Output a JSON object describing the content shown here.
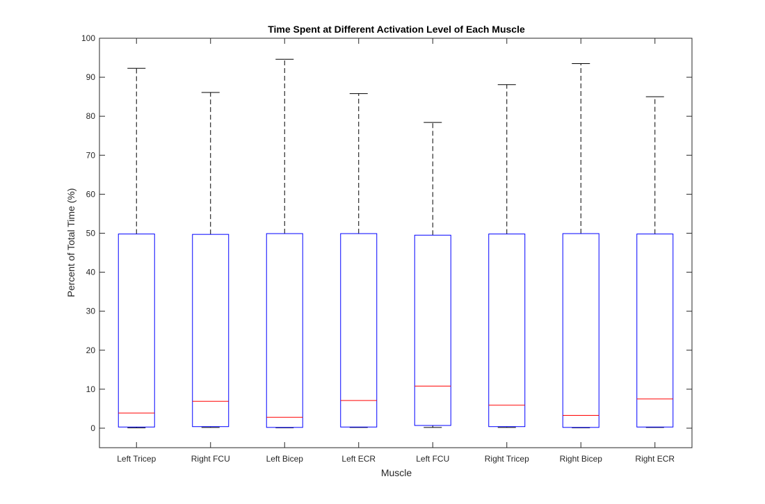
{
  "chart_data": {
    "type": "box",
    "title": "Time Spent at Different Activation Level of Each Muscle",
    "xlabel": "Muscle",
    "ylabel": "Percent of Total Time (%)",
    "ylim": [
      -5,
      100
    ],
    "yticks": [
      0,
      10,
      20,
      30,
      40,
      50,
      60,
      70,
      80,
      90,
      100
    ],
    "grid": false,
    "legend": "none",
    "categories": [
      "Left Tricep",
      "Right FCU",
      "Left Bicep",
      "Left ECR",
      "Left FCU",
      "Right Tricep",
      "Right Bicep",
      "Right ECR"
    ],
    "boxes": [
      {
        "label": "Left Tricep",
        "min": 0.1,
        "q1": 0.3,
        "median": 3.9,
        "q3": 49.8,
        "max": 92.3
      },
      {
        "label": "Right FCU",
        "min": 0.2,
        "q1": 0.4,
        "median": 6.9,
        "q3": 49.7,
        "max": 86.1
      },
      {
        "label": "Left Bicep",
        "min": 0.1,
        "q1": 0.2,
        "median": 2.8,
        "q3": 49.9,
        "max": 94.6
      },
      {
        "label": "Left ECR",
        "min": 0.2,
        "q1": 0.3,
        "median": 7.1,
        "q3": 49.9,
        "max": 85.8
      },
      {
        "label": "Left FCU",
        "min": 0.2,
        "q1": 0.7,
        "median": 10.8,
        "q3": 49.5,
        "max": 78.4
      },
      {
        "label": "Right Tricep",
        "min": 0.2,
        "q1": 0.4,
        "median": 5.9,
        "q3": 49.8,
        "max": 88.1
      },
      {
        "label": "Right Bicep",
        "min": 0.1,
        "q1": 0.2,
        "median": 3.3,
        "q3": 49.9,
        "max": 93.5
      },
      {
        "label": "Right ECR",
        "min": 0.2,
        "q1": 0.3,
        "median": 7.5,
        "q3": 49.8,
        "max": 85.0
      }
    ],
    "colors": {
      "box": "#0000ff",
      "median": "#ff0000",
      "whisker": "#000000",
      "axis": "#262626"
    }
  }
}
